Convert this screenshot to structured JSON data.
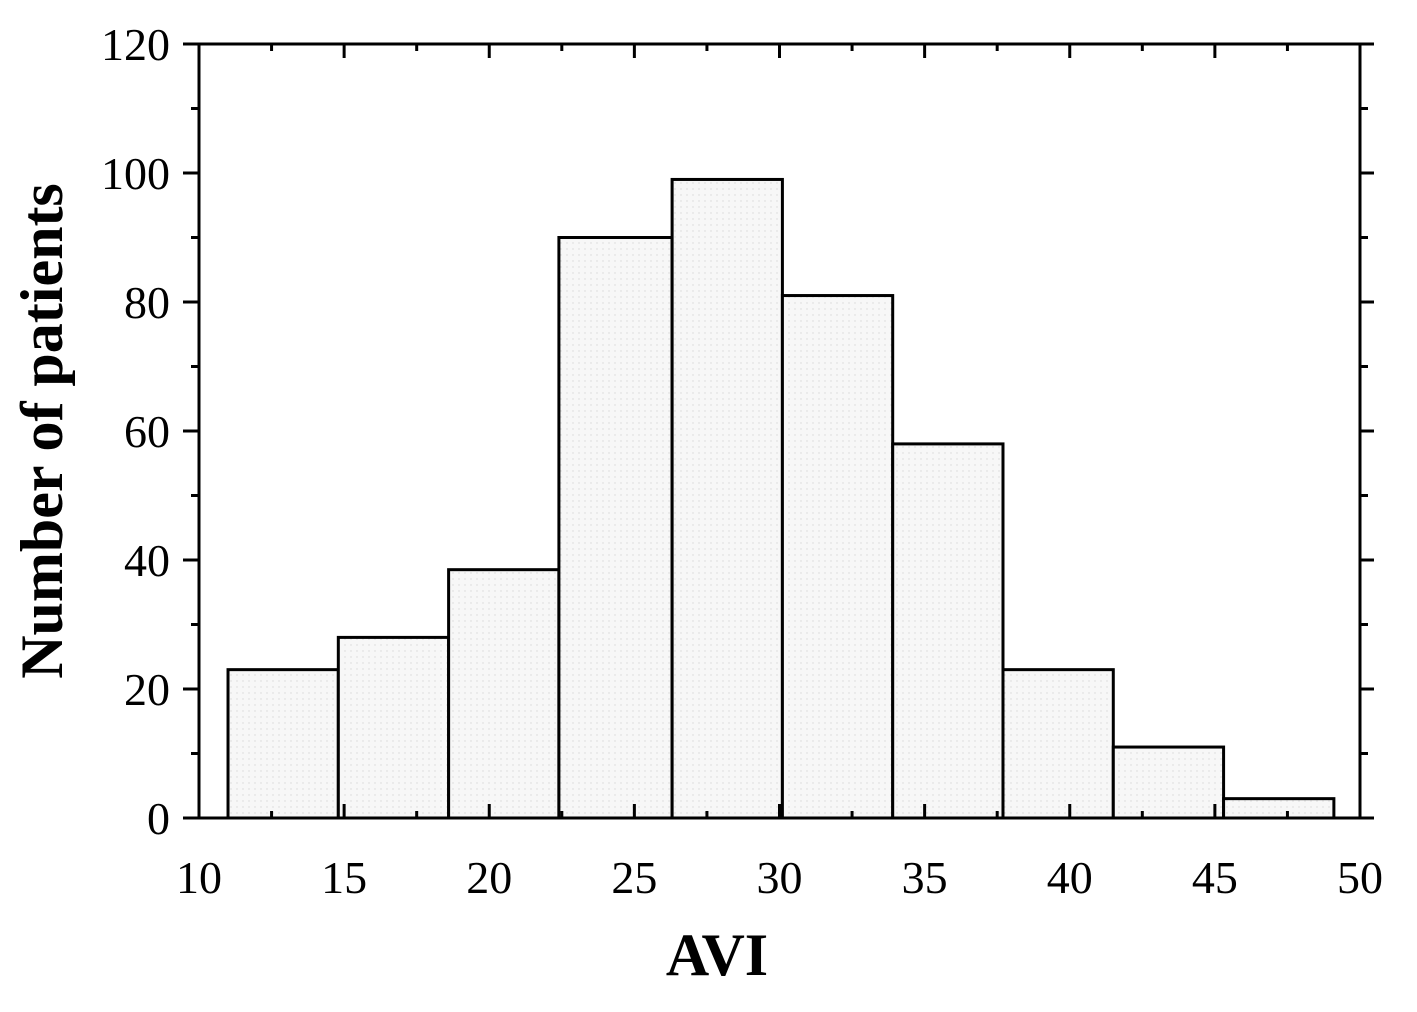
{
  "chart_data": {
    "type": "bar",
    "xlabel": "AVI",
    "ylabel": "Number of patients",
    "xlim": [
      10,
      50
    ],
    "ylim": [
      0,
      120
    ],
    "xticks": [
      10,
      15,
      20,
      25,
      30,
      35,
      40,
      45,
      50
    ],
    "yticks": [
      0,
      20,
      40,
      60,
      80,
      100,
      120
    ],
    "bins": [
      {
        "start": 11.0,
        "end": 14.8,
        "value": 23
      },
      {
        "start": 14.8,
        "end": 18.6,
        "value": 28
      },
      {
        "start": 18.6,
        "end": 22.4,
        "value": 38.5
      },
      {
        "start": 22.4,
        "end": 26.3,
        "value": 90
      },
      {
        "start": 26.3,
        "end": 30.1,
        "value": 99
      },
      {
        "start": 30.1,
        "end": 33.9,
        "value": 81
      },
      {
        "start": 33.9,
        "end": 37.7,
        "value": 58
      },
      {
        "start": 37.7,
        "end": 41.5,
        "value": 23
      },
      {
        "start": 41.5,
        "end": 45.3,
        "value": 11
      },
      {
        "start": 45.3,
        "end": 49.1,
        "value": 3
      }
    ],
    "grid": false,
    "bar_fill": "#f5f5f5",
    "bar_edge": "#000000"
  }
}
